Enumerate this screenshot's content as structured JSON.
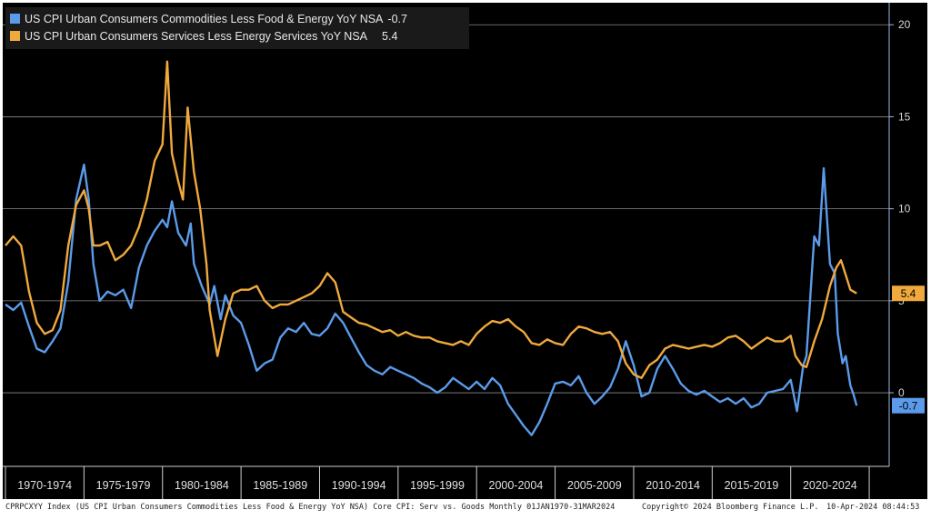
{
  "chart_data": {
    "type": "line",
    "ylim": [
      -4,
      21
    ],
    "y_ticks": [
      20,
      15,
      10,
      5,
      0
    ],
    "grid": true,
    "legend_position": "top-left",
    "x_ticks": [
      "1970-1974",
      "1975-1979",
      "1980-1984",
      "1985-1989",
      "1990-1994",
      "1995-1999",
      "2000-2004",
      "2005-2009",
      "2010-2014",
      "2015-2019",
      "2020-2024"
    ],
    "series": [
      {
        "name": "US CPI Urban Consumers Commodities Less Food & Energy YoY NSA",
        "last_value": "-0.7",
        "color": "#5b9bea",
        "points": [
          [
            1970.0,
            4.8
          ],
          [
            1970.5,
            4.5
          ],
          [
            1971.0,
            4.9
          ],
          [
            1971.5,
            3.6
          ],
          [
            1972.0,
            2.4
          ],
          [
            1972.5,
            2.2
          ],
          [
            1973.0,
            2.8
          ],
          [
            1973.5,
            3.5
          ],
          [
            1974.0,
            6.0
          ],
          [
            1974.5,
            10.5
          ],
          [
            1975.0,
            12.4
          ],
          [
            1975.3,
            10.5
          ],
          [
            1975.6,
            7.0
          ],
          [
            1976.0,
            5.0
          ],
          [
            1976.5,
            5.5
          ],
          [
            1977.0,
            5.3
          ],
          [
            1977.5,
            5.6
          ],
          [
            1978.0,
            4.6
          ],
          [
            1978.5,
            6.8
          ],
          [
            1979.0,
            8.0
          ],
          [
            1979.5,
            8.8
          ],
          [
            1980.0,
            9.4
          ],
          [
            1980.3,
            9.0
          ],
          [
            1980.6,
            10.4
          ],
          [
            1981.0,
            8.7
          ],
          [
            1981.5,
            8.0
          ],
          [
            1981.8,
            9.2
          ],
          [
            1982.0,
            7.0
          ],
          [
            1982.5,
            5.8
          ],
          [
            1983.0,
            4.8
          ],
          [
            1983.3,
            5.8
          ],
          [
            1983.7,
            4.0
          ],
          [
            1984.0,
            5.3
          ],
          [
            1984.5,
            4.2
          ],
          [
            1985.0,
            3.8
          ],
          [
            1985.5,
            2.6
          ],
          [
            1986.0,
            1.2
          ],
          [
            1986.5,
            1.6
          ],
          [
            1987.0,
            1.8
          ],
          [
            1987.5,
            3.0
          ],
          [
            1988.0,
            3.5
          ],
          [
            1988.5,
            3.3
          ],
          [
            1989.0,
            3.8
          ],
          [
            1989.5,
            3.2
          ],
          [
            1990.0,
            3.1
          ],
          [
            1990.5,
            3.5
          ],
          [
            1991.0,
            4.3
          ],
          [
            1991.5,
            3.8
          ],
          [
            1992.0,
            3.0
          ],
          [
            1992.5,
            2.2
          ],
          [
            1993.0,
            1.5
          ],
          [
            1993.5,
            1.2
          ],
          [
            1994.0,
            1.0
          ],
          [
            1994.5,
            1.4
          ],
          [
            1995.0,
            1.2
          ],
          [
            1995.5,
            1.0
          ],
          [
            1996.0,
            0.8
          ],
          [
            1996.5,
            0.5
          ],
          [
            1997.0,
            0.3
          ],
          [
            1997.5,
            0.0
          ],
          [
            1998.0,
            0.3
          ],
          [
            1998.5,
            0.8
          ],
          [
            1999.0,
            0.5
          ],
          [
            1999.5,
            0.2
          ],
          [
            2000.0,
            0.6
          ],
          [
            2000.5,
            0.2
          ],
          [
            2001.0,
            0.8
          ],
          [
            2001.5,
            0.4
          ],
          [
            2002.0,
            -0.6
          ],
          [
            2002.5,
            -1.2
          ],
          [
            2003.0,
            -1.8
          ],
          [
            2003.5,
            -2.3
          ],
          [
            2004.0,
            -1.6
          ],
          [
            2004.5,
            -0.6
          ],
          [
            2005.0,
            0.5
          ],
          [
            2005.5,
            0.6
          ],
          [
            2006.0,
            0.4
          ],
          [
            2006.5,
            0.9
          ],
          [
            2007.0,
            0.0
          ],
          [
            2007.5,
            -0.6
          ],
          [
            2008.0,
            -0.2
          ],
          [
            2008.5,
            0.3
          ],
          [
            2009.0,
            1.3
          ],
          [
            2009.5,
            2.8
          ],
          [
            2010.0,
            1.5
          ],
          [
            2010.5,
            -0.2
          ],
          [
            2011.0,
            0.0
          ],
          [
            2011.5,
            1.3
          ],
          [
            2012.0,
            2.0
          ],
          [
            2012.5,
            1.3
          ],
          [
            2013.0,
            0.5
          ],
          [
            2013.5,
            0.1
          ],
          [
            2014.0,
            -0.1
          ],
          [
            2014.5,
            0.1
          ],
          [
            2015.0,
            -0.2
          ],
          [
            2015.5,
            -0.5
          ],
          [
            2016.0,
            -0.3
          ],
          [
            2016.5,
            -0.6
          ],
          [
            2017.0,
            -0.3
          ],
          [
            2017.5,
            -0.8
          ],
          [
            2018.0,
            -0.6
          ],
          [
            2018.5,
            0.0
          ],
          [
            2019.0,
            0.1
          ],
          [
            2019.5,
            0.2
          ],
          [
            2020.0,
            0.7
          ],
          [
            2020.4,
            -1.0
          ],
          [
            2020.8,
            1.5
          ],
          [
            2021.0,
            2.0
          ],
          [
            2021.5,
            8.5
          ],
          [
            2021.8,
            8.0
          ],
          [
            2022.1,
            12.2
          ],
          [
            2022.5,
            7.0
          ],
          [
            2022.8,
            6.5
          ],
          [
            2023.0,
            3.2
          ],
          [
            2023.3,
            1.6
          ],
          [
            2023.5,
            2.0
          ],
          [
            2023.8,
            0.4
          ],
          [
            2024.0,
            -0.1
          ],
          [
            2024.2,
            -0.7
          ]
        ]
      },
      {
        "name": "US CPI Urban Consumers Services Less Energy Services YoY NSA",
        "last_value": "5.4",
        "color": "#f0a93c",
        "points": [
          [
            1970.0,
            8.0
          ],
          [
            1970.5,
            8.5
          ],
          [
            1971.0,
            8.0
          ],
          [
            1971.5,
            5.5
          ],
          [
            1972.0,
            3.8
          ],
          [
            1972.5,
            3.2
          ],
          [
            1973.0,
            3.4
          ],
          [
            1973.5,
            4.5
          ],
          [
            1974.0,
            8.0
          ],
          [
            1974.5,
            10.2
          ],
          [
            1975.0,
            11.0
          ],
          [
            1975.3,
            10.0
          ],
          [
            1975.6,
            8.0
          ],
          [
            1976.0,
            8.0
          ],
          [
            1976.5,
            8.2
          ],
          [
            1977.0,
            7.2
          ],
          [
            1977.5,
            7.5
          ],
          [
            1978.0,
            8.0
          ],
          [
            1978.5,
            9.0
          ],
          [
            1979.0,
            10.5
          ],
          [
            1979.5,
            12.6
          ],
          [
            1980.0,
            13.5
          ],
          [
            1980.3,
            18.0
          ],
          [
            1980.6,
            13.0
          ],
          [
            1981.0,
            11.5
          ],
          [
            1981.3,
            10.5
          ],
          [
            1981.6,
            15.5
          ],
          [
            1982.0,
            12.0
          ],
          [
            1982.4,
            10.0
          ],
          [
            1982.8,
            7.0
          ],
          [
            1983.0,
            4.5
          ],
          [
            1983.5,
            2.0
          ],
          [
            1984.0,
            4.0
          ],
          [
            1984.5,
            5.4
          ],
          [
            1985.0,
            5.6
          ],
          [
            1985.5,
            5.6
          ],
          [
            1986.0,
            5.8
          ],
          [
            1986.5,
            5.0
          ],
          [
            1987.0,
            4.6
          ],
          [
            1987.5,
            4.8
          ],
          [
            1988.0,
            4.8
          ],
          [
            1988.5,
            5.0
          ],
          [
            1989.0,
            5.2
          ],
          [
            1989.5,
            5.4
          ],
          [
            1990.0,
            5.8
          ],
          [
            1990.5,
            6.5
          ],
          [
            1991.0,
            6.0
          ],
          [
            1991.5,
            4.4
          ],
          [
            1992.0,
            4.1
          ],
          [
            1992.5,
            3.8
          ],
          [
            1993.0,
            3.7
          ],
          [
            1993.5,
            3.5
          ],
          [
            1994.0,
            3.3
          ],
          [
            1994.5,
            3.4
          ],
          [
            1995.0,
            3.1
          ],
          [
            1995.5,
            3.3
          ],
          [
            1996.0,
            3.1
          ],
          [
            1996.5,
            3.0
          ],
          [
            1997.0,
            3.0
          ],
          [
            1997.5,
            2.8
          ],
          [
            1998.0,
            2.7
          ],
          [
            1998.5,
            2.6
          ],
          [
            1999.0,
            2.8
          ],
          [
            1999.5,
            2.6
          ],
          [
            2000.0,
            3.2
          ],
          [
            2000.5,
            3.6
          ],
          [
            2001.0,
            3.9
          ],
          [
            2001.5,
            3.8
          ],
          [
            2002.0,
            4.0
          ],
          [
            2002.5,
            3.6
          ],
          [
            2003.0,
            3.3
          ],
          [
            2003.5,
            2.7
          ],
          [
            2004.0,
            2.6
          ],
          [
            2004.5,
            2.9
          ],
          [
            2005.0,
            2.7
          ],
          [
            2005.5,
            2.6
          ],
          [
            2006.0,
            3.2
          ],
          [
            2006.5,
            3.6
          ],
          [
            2007.0,
            3.5
          ],
          [
            2007.5,
            3.3
          ],
          [
            2008.0,
            3.2
          ],
          [
            2008.5,
            3.3
          ],
          [
            2009.0,
            2.8
          ],
          [
            2009.5,
            1.6
          ],
          [
            2010.0,
            1.0
          ],
          [
            2010.5,
            0.8
          ],
          [
            2011.0,
            1.5
          ],
          [
            2011.5,
            1.8
          ],
          [
            2012.0,
            2.4
          ],
          [
            2012.5,
            2.6
          ],
          [
            2013.0,
            2.5
          ],
          [
            2013.5,
            2.4
          ],
          [
            2014.0,
            2.5
          ],
          [
            2014.5,
            2.6
          ],
          [
            2015.0,
            2.5
          ],
          [
            2015.5,
            2.7
          ],
          [
            2016.0,
            3.0
          ],
          [
            2016.5,
            3.1
          ],
          [
            2017.0,
            2.8
          ],
          [
            2017.5,
            2.4
          ],
          [
            2018.0,
            2.7
          ],
          [
            2018.5,
            3.0
          ],
          [
            2019.0,
            2.8
          ],
          [
            2019.5,
            2.8
          ],
          [
            2020.0,
            3.1
          ],
          [
            2020.3,
            2.0
          ],
          [
            2020.7,
            1.5
          ],
          [
            2021.0,
            1.4
          ],
          [
            2021.5,
            2.8
          ],
          [
            2022.0,
            4.0
          ],
          [
            2022.5,
            5.8
          ],
          [
            2022.9,
            6.8
          ],
          [
            2023.2,
            7.2
          ],
          [
            2023.5,
            6.4
          ],
          [
            2023.8,
            5.6
          ],
          [
            2024.2,
            5.4
          ]
        ]
      }
    ]
  },
  "footer": {
    "left": "CPRPCXYY Index (US CPI Urban Consumers Commodities Less Food & Energy YoY NSA) Core CPI: Serv vs. Goods  Monthly 01JAN1970-31MAR2024",
    "middle": "Copyright© 2024 Bloomberg Finance L.P.",
    "right": "10-Apr-2024 08:44:53"
  }
}
